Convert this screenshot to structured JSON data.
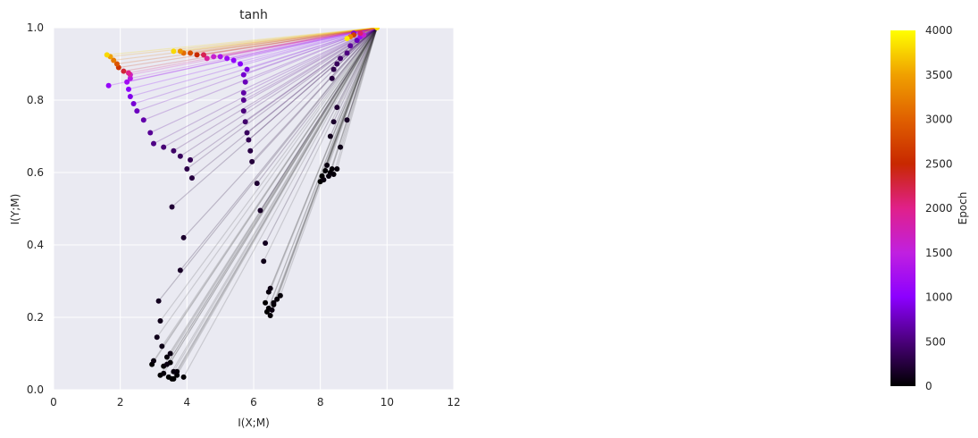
{
  "chart_data": {
    "type": "scatter",
    "title": "tanh",
    "xlabel": "I(X;M)",
    "ylabel": "I(Y;M)",
    "xlim": [
      0,
      12
    ],
    "ylim": [
      0,
      1.0
    ],
    "xticks": [
      "0",
      "2",
      "4",
      "6",
      "8",
      "10",
      "12"
    ],
    "yticks": [
      "0.0",
      "0.2",
      "0.4",
      "0.6",
      "0.8",
      "1.0"
    ],
    "grid": true,
    "endpoint": {
      "x": 9.7,
      "y": 1.0
    },
    "colorbar": {
      "label": "Epoch",
      "range": [
        0,
        4000
      ],
      "ticks": [
        "0",
        "500",
        "1000",
        "1500",
        "2000",
        "2500",
        "3000",
        "3500",
        "4000"
      ],
      "colormap": [
        "#000000",
        "#4a007a",
        "#8c00ff",
        "#c020e0",
        "#e0208a",
        "#c82800",
        "#e06000",
        "#f0a000",
        "#ffff00"
      ]
    },
    "series": [
      {
        "points": [
          {
            "x": 3.6,
            "y": 0.03,
            "epoch": 0
          },
          {
            "x": 3.9,
            "y": 0.035,
            "epoch": 20
          },
          {
            "x": 3.3,
            "y": 0.045,
            "epoch": 40
          },
          {
            "x": 3.0,
            "y": 0.08,
            "epoch": 60
          },
          {
            "x": 3.5,
            "y": 0.1,
            "epoch": 80
          },
          {
            "x": 3.2,
            "y": 0.19,
            "epoch": 100
          },
          {
            "x": 3.15,
            "y": 0.245,
            "epoch": 130
          },
          {
            "x": 3.8,
            "y": 0.33,
            "epoch": 160
          },
          {
            "x": 3.9,
            "y": 0.42,
            "epoch": 190
          },
          {
            "x": 3.55,
            "y": 0.505,
            "epoch": 220
          },
          {
            "x": 4.15,
            "y": 0.585,
            "epoch": 260
          },
          {
            "x": 4.0,
            "y": 0.61,
            "epoch": 300
          },
          {
            "x": 4.1,
            "y": 0.635,
            "epoch": 340
          },
          {
            "x": 3.8,
            "y": 0.645,
            "epoch": 380
          },
          {
            "x": 3.6,
            "y": 0.66,
            "epoch": 420
          },
          {
            "x": 3.3,
            "y": 0.67,
            "epoch": 480
          },
          {
            "x": 3.0,
            "y": 0.68,
            "epoch": 540
          },
          {
            "x": 2.9,
            "y": 0.71,
            "epoch": 600
          },
          {
            "x": 2.7,
            "y": 0.745,
            "epoch": 680
          },
          {
            "x": 2.5,
            "y": 0.77,
            "epoch": 760
          },
          {
            "x": 2.4,
            "y": 0.79,
            "epoch": 840
          },
          {
            "x": 2.3,
            "y": 0.81,
            "epoch": 920
          },
          {
            "x": 2.25,
            "y": 0.83,
            "epoch": 1000
          },
          {
            "x": 1.65,
            "y": 0.84,
            "epoch": 1100
          },
          {
            "x": 2.2,
            "y": 0.85,
            "epoch": 1200
          },
          {
            "x": 2.3,
            "y": 0.86,
            "epoch": 1400
          },
          {
            "x": 2.3,
            "y": 0.87,
            "epoch": 1700
          },
          {
            "x": 2.25,
            "y": 0.875,
            "epoch": 2000
          },
          {
            "x": 2.1,
            "y": 0.88,
            "epoch": 2300
          },
          {
            "x": 1.95,
            "y": 0.89,
            "epoch": 2600
          },
          {
            "x": 1.9,
            "y": 0.9,
            "epoch": 2900
          },
          {
            "x": 1.8,
            "y": 0.91,
            "epoch": 3200
          },
          {
            "x": 1.7,
            "y": 0.92,
            "epoch": 3500
          },
          {
            "x": 1.6,
            "y": 0.925,
            "epoch": 3800
          }
        ]
      },
      {
        "points": [
          {
            "x": 6.4,
            "y": 0.215,
            "epoch": 0
          },
          {
            "x": 6.6,
            "y": 0.235,
            "epoch": 20
          },
          {
            "x": 6.8,
            "y": 0.26,
            "epoch": 40
          },
          {
            "x": 6.5,
            "y": 0.28,
            "epoch": 70
          },
          {
            "x": 6.3,
            "y": 0.355,
            "epoch": 100
          },
          {
            "x": 6.35,
            "y": 0.405,
            "epoch": 130
          },
          {
            "x": 6.2,
            "y": 0.495,
            "epoch": 160
          },
          {
            "x": 6.1,
            "y": 0.57,
            "epoch": 200
          },
          {
            "x": 5.95,
            "y": 0.63,
            "epoch": 240
          },
          {
            "x": 5.9,
            "y": 0.66,
            "epoch": 280
          },
          {
            "x": 5.85,
            "y": 0.69,
            "epoch": 330
          },
          {
            "x": 5.8,
            "y": 0.71,
            "epoch": 380
          },
          {
            "x": 5.75,
            "y": 0.74,
            "epoch": 440
          },
          {
            "x": 5.7,
            "y": 0.77,
            "epoch": 500
          },
          {
            "x": 5.7,
            "y": 0.8,
            "epoch": 580
          },
          {
            "x": 5.7,
            "y": 0.82,
            "epoch": 660
          },
          {
            "x": 5.75,
            "y": 0.85,
            "epoch": 740
          },
          {
            "x": 5.7,
            "y": 0.87,
            "epoch": 820
          },
          {
            "x": 5.8,
            "y": 0.885,
            "epoch": 900
          },
          {
            "x": 5.6,
            "y": 0.9,
            "epoch": 980
          },
          {
            "x": 5.4,
            "y": 0.91,
            "epoch": 1060
          },
          {
            "x": 5.2,
            "y": 0.915,
            "epoch": 1150
          },
          {
            "x": 5.0,
            "y": 0.92,
            "epoch": 1300
          },
          {
            "x": 4.8,
            "y": 0.92,
            "epoch": 1600
          },
          {
            "x": 4.6,
            "y": 0.915,
            "epoch": 1900
          },
          {
            "x": 4.5,
            "y": 0.925,
            "epoch": 2200
          },
          {
            "x": 4.3,
            "y": 0.925,
            "epoch": 2500
          },
          {
            "x": 4.1,
            "y": 0.93,
            "epoch": 2800
          },
          {
            "x": 3.9,
            "y": 0.93,
            "epoch": 3100
          },
          {
            "x": 3.8,
            "y": 0.935,
            "epoch": 3400
          },
          {
            "x": 3.6,
            "y": 0.935,
            "epoch": 3800
          }
        ]
      },
      {
        "points": [
          {
            "x": 8.0,
            "y": 0.575,
            "epoch": 0
          },
          {
            "x": 8.3,
            "y": 0.6,
            "epoch": 20
          },
          {
            "x": 8.5,
            "y": 0.61,
            "epoch": 40
          },
          {
            "x": 8.2,
            "y": 0.62,
            "epoch": 60
          },
          {
            "x": 8.6,
            "y": 0.67,
            "epoch": 90
          },
          {
            "x": 8.3,
            "y": 0.7,
            "epoch": 120
          },
          {
            "x": 8.8,
            "y": 0.745,
            "epoch": 150
          },
          {
            "x": 8.4,
            "y": 0.74,
            "epoch": 180
          },
          {
            "x": 8.5,
            "y": 0.78,
            "epoch": 210
          },
          {
            "x": 8.35,
            "y": 0.86,
            "epoch": 260
          },
          {
            "x": 8.4,
            "y": 0.885,
            "epoch": 310
          },
          {
            "x": 8.5,
            "y": 0.9,
            "epoch": 370
          },
          {
            "x": 8.6,
            "y": 0.915,
            "epoch": 440
          },
          {
            "x": 8.8,
            "y": 0.93,
            "epoch": 520
          },
          {
            "x": 8.9,
            "y": 0.95,
            "epoch": 620
          },
          {
            "x": 9.1,
            "y": 0.965,
            "epoch": 740
          },
          {
            "x": 9.0,
            "y": 0.985,
            "epoch": 900
          },
          {
            "x": 9.2,
            "y": 0.975,
            "epoch": 1200
          },
          {
            "x": 9.3,
            "y": 0.98,
            "epoch": 1600
          },
          {
            "x": 9.2,
            "y": 0.985,
            "epoch": 2100
          },
          {
            "x": 9.0,
            "y": 0.98,
            "epoch": 2700
          },
          {
            "x": 8.9,
            "y": 0.975,
            "epoch": 3300
          },
          {
            "x": 8.8,
            "y": 0.97,
            "epoch": 3900
          }
        ]
      },
      {
        "points": [
          {
            "x": 3.45,
            "y": 0.035,
            "epoch": 0
          },
          {
            "x": 3.7,
            "y": 0.04,
            "epoch": 10
          },
          {
            "x": 3.3,
            "y": 0.065,
            "epoch": 30
          },
          {
            "x": 3.6,
            "y": 0.05,
            "epoch": 50
          },
          {
            "x": 3.4,
            "y": 0.07,
            "epoch": 70
          },
          {
            "x": 3.25,
            "y": 0.12,
            "epoch": 90
          },
          {
            "x": 3.1,
            "y": 0.145,
            "epoch": 110
          },
          {
            "x": 2.95,
            "y": 0.07,
            "epoch": 10
          },
          {
            "x": 3.2,
            "y": 0.04,
            "epoch": 15
          },
          {
            "x": 3.5,
            "y": 0.075,
            "epoch": 25
          },
          {
            "x": 3.7,
            "y": 0.05,
            "epoch": 35
          },
          {
            "x": 3.55,
            "y": 0.03,
            "epoch": 5
          },
          {
            "x": 3.4,
            "y": 0.09,
            "epoch": 45
          }
        ]
      },
      {
        "points": [
          {
            "x": 6.35,
            "y": 0.24,
            "epoch": 5
          },
          {
            "x": 6.45,
            "y": 0.225,
            "epoch": 15
          },
          {
            "x": 6.5,
            "y": 0.205,
            "epoch": 25
          },
          {
            "x": 6.7,
            "y": 0.25,
            "epoch": 35
          },
          {
            "x": 6.6,
            "y": 0.24,
            "epoch": 45
          },
          {
            "x": 6.45,
            "y": 0.27,
            "epoch": 55
          },
          {
            "x": 6.55,
            "y": 0.22,
            "epoch": 65
          }
        ]
      },
      {
        "points": [
          {
            "x": 8.05,
            "y": 0.59,
            "epoch": 5
          },
          {
            "x": 8.15,
            "y": 0.605,
            "epoch": 15
          },
          {
            "x": 8.35,
            "y": 0.61,
            "epoch": 25
          },
          {
            "x": 8.4,
            "y": 0.595,
            "epoch": 35
          },
          {
            "x": 8.25,
            "y": 0.59,
            "epoch": 45
          },
          {
            "x": 8.1,
            "y": 0.58,
            "epoch": 55
          }
        ]
      }
    ]
  }
}
